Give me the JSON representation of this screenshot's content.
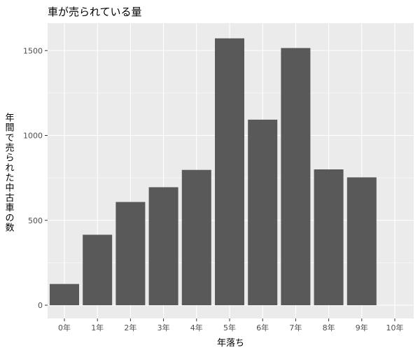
{
  "chart_data": {
    "type": "bar",
    "title": "車が売られている量",
    "xlabel": "年落ち",
    "ylabel": "年間で売られた中古車の数",
    "categories": [
      "0年",
      "1年",
      "2年",
      "3年",
      "4年",
      "5年",
      "6年",
      "7年",
      "8年",
      "9年",
      "10年"
    ],
    "values": [
      125,
      415,
      608,
      695,
      797,
      1572,
      1093,
      1515,
      800,
      753,
      0
    ],
    "ylim": [
      0,
      1650
    ],
    "yticks": [
      "0",
      "500",
      "1000",
      "1500"
    ],
    "grid": true,
    "legend": "none",
    "colors": {
      "bar": "#595959",
      "panel": "#ebebeb",
      "grid": "#ffffff"
    }
  }
}
